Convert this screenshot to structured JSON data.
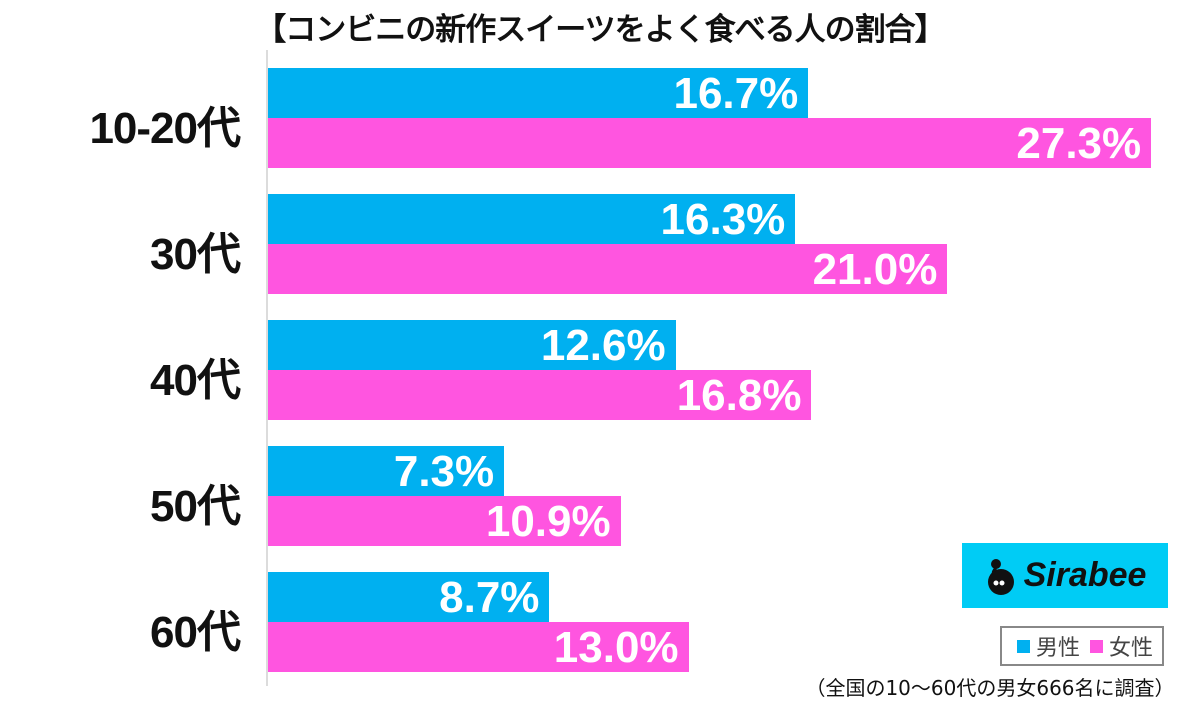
{
  "title": "【コンビニの新作スイーツをよく食べる人の割合】",
  "colors": {
    "male": "#00b0f0",
    "female": "#ff55e0",
    "logo_bg": "#00ccf5"
  },
  "legend": {
    "male": "男性",
    "female": "女性"
  },
  "logo": {
    "text": "Sirabee"
  },
  "note": "（全国の10〜60代の男女666名に調査）",
  "chart_data": {
    "type": "bar",
    "orientation": "horizontal",
    "title": "【コンビニの新作スイーツをよく食べる人の割合】",
    "categories": [
      "10-20代",
      "30代",
      "40代",
      "50代",
      "60代"
    ],
    "series": [
      {
        "name": "男性",
        "values": [
          16.7,
          16.3,
          12.6,
          7.3,
          8.7
        ],
        "labels": [
          "16.7%",
          "16.3%",
          "12.6%",
          "7.3%",
          "8.7%"
        ]
      },
      {
        "name": "女性",
        "values": [
          27.3,
          21.0,
          16.8,
          10.9,
          13.0
        ],
        "labels": [
          "27.3%",
          "21.0%",
          "16.8%",
          "10.9%",
          "13.0%"
        ]
      }
    ],
    "xlabel": "",
    "ylabel": "",
    "grid": false,
    "legend_position": "bottom-right",
    "unit": "%"
  }
}
